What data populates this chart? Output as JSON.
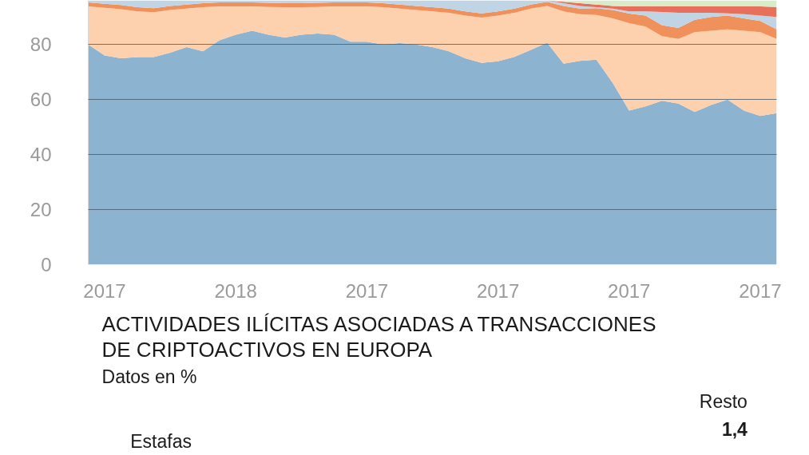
{
  "chart_data": [
    {
      "type": "area",
      "stacked": true,
      "grid": "y",
      "categories": [
        null,
        "2017",
        null,
        null,
        null,
        null,
        null,
        null,
        null,
        "2018",
        null,
        null,
        null,
        null,
        null,
        null,
        null,
        "2017",
        null,
        null,
        null,
        null,
        null,
        null,
        null,
        "2017",
        null,
        null,
        null,
        null,
        null,
        null,
        null,
        "2017",
        null,
        null,
        null,
        null,
        null,
        null,
        null,
        "2017",
        null
      ],
      "ylim": [
        0,
        96
      ],
      "yticks": [
        0,
        20,
        40,
        60,
        80
      ],
      "series": [
        {
          "color": "#8cb3cf",
          "values": [
            80,
            76,
            75,
            75.4,
            75.4,
            77,
            79,
            77.5,
            81.5,
            83.5,
            85,
            83.5,
            82.5,
            83.5,
            84,
            83.5,
            81,
            81,
            80,
            80.5,
            80,
            79,
            77.5,
            75,
            73.3,
            73.9,
            75.5,
            78,
            80.6,
            73,
            74,
            74.5,
            66,
            56,
            57.5,
            59.5,
            58.5,
            55.5,
            58,
            60,
            56,
            54,
            55
          ]
        },
        {
          "color": "#fdd0ae",
          "values": [
            13.8,
            17.3,
            17.8,
            16.6,
            16.3,
            15.5,
            14,
            16,
            12.3,
            10.3,
            8.8,
            10.1,
            11,
            10,
            9.6,
            10.3,
            12.8,
            12.8,
            13.5,
            12.5,
            12.5,
            13,
            14,
            15.5,
            16.5,
            16.6,
            16,
            15,
            13.4,
            19,
            17,
            16.2,
            23.5,
            31.7,
            29,
            23.5,
            23.5,
            29,
            27,
            25.5,
            29,
            30.5,
            27
          ]
        },
        {
          "color": "#f0915c",
          "values": [
            1.5,
            1.5,
            1.5,
            1.5,
            1.5,
            1.5,
            1.5,
            1.5,
            1.5,
            1.5,
            1.5,
            1.5,
            1.5,
            1.5,
            1.5,
            1.5,
            1.5,
            1.5,
            1.5,
            1.5,
            1.5,
            1.5,
            1.5,
            1.5,
            1.5,
            1.5,
            1.5,
            1.5,
            1.5,
            2,
            2,
            2.5,
            3,
            3.5,
            4,
            4,
            4,
            4.5,
            5,
            5,
            4.5,
            4,
            3.5
          ]
        },
        {
          "color": "#bfd5e6",
          "values": [
            0.7,
            1.2,
            1.7,
            2.5,
            2.8,
            2,
            1.5,
            1,
            0.7,
            0.7,
            0.7,
            0.9,
            1,
            1,
            0.9,
            0.7,
            0.7,
            0.7,
            1,
            1.5,
            2,
            2.5,
            3,
            4,
            4.7,
            4,
            3,
            1.5,
            0.5,
            1,
            1,
            0.3,
            0.5,
            0.8,
            1.5,
            4.8,
            5.5,
            2.5,
            1.5,
            0.8,
            1.5,
            2,
            4.5
          ]
        },
        {
          "color": "#e8705a",
          "values": [
            0,
            0,
            0,
            0,
            0,
            0,
            0,
            0,
            0,
            0,
            0,
            0,
            0,
            0,
            0,
            0,
            0,
            0,
            0,
            0,
            0,
            0,
            0,
            0,
            0,
            0,
            0,
            0,
            0,
            0.5,
            1,
            1,
            1,
            1.8,
            1.8,
            2,
            2.3,
            2.3,
            2.3,
            2.5,
            2.8,
            3.3,
            3.6
          ]
        },
        {
          "color": "#d9ecc8",
          "values": [
            0,
            0,
            0,
            0,
            0,
            0,
            0,
            0,
            0,
            0,
            0,
            0,
            0,
            0,
            0,
            0,
            0,
            0,
            0,
            0,
            0,
            0,
            0,
            0,
            0,
            0,
            0,
            0,
            0,
            0.5,
            1,
            1.5,
            2,
            2.2,
            2.2,
            2.2,
            2.2,
            2.2,
            2.2,
            2.2,
            2.2,
            2.2,
            2.4
          ]
        }
      ]
    },
    {
      "type": "other",
      "title": "ACTIVIDADES ILÍCITAS ASOCIADAS A TRANSACCIONES\nDE CRIPTOACTIVOS EN EUROPA",
      "subtitle": "Datos en %",
      "annotations": [
        "Estafas",
        "Resto",
        "1,4"
      ]
    }
  ]
}
